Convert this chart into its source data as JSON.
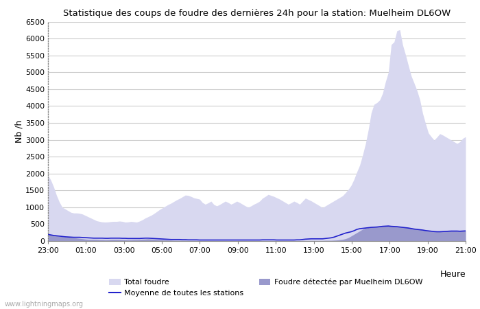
{
  "title": "Statistique des coups de foudre des dernières 24h pour la station: Muelheim DL6OW",
  "ylabel": "Nb /h",
  "xlabel": "Heure",
  "ylim": [
    0,
    6500
  ],
  "yticks": [
    0,
    500,
    1000,
    1500,
    2000,
    2500,
    3000,
    3500,
    4000,
    4500,
    5000,
    5500,
    6000,
    6500
  ],
  "xtick_labels": [
    "23:00",
    "01:00",
    "03:00",
    "05:00",
    "07:00",
    "09:00",
    "11:00",
    "13:00",
    "15:00",
    "17:00",
    "19:00",
    "21:00"
  ],
  "background_color": "#ffffff",
  "grid_color": "#cccccc",
  "total_foudre_color": "#d8d8f0",
  "detected_foudre_color": "#9999cc",
  "mean_line_color": "#2222cc",
  "watermark": "www.lightningmaps.org",
  "legend_total": "Total foudre",
  "legend_detected": "Foudre détectée par Muelheim DL6OW",
  "legend_mean": "Moyenne de toutes les stations",
  "total_foudre": [
    1950,
    1800,
    1600,
    1350,
    1150,
    1000,
    950,
    900,
    850,
    830,
    830,
    820,
    800,
    760,
    720,
    680,
    640,
    600,
    580,
    565,
    560,
    565,
    575,
    580,
    580,
    590,
    580,
    560,
    565,
    580,
    570,
    560,
    590,
    630,
    680,
    720,
    760,
    810,
    870,
    930,
    980,
    1030,
    1080,
    1120,
    1170,
    1220,
    1260,
    1310,
    1360,
    1350,
    1320,
    1280,
    1260,
    1240,
    1140,
    1090,
    1130,
    1180,
    1080,
    1040,
    1080,
    1130,
    1180,
    1140,
    1090,
    1130,
    1180,
    1140,
    1090,
    1040,
    1000,
    1040,
    1090,
    1130,
    1180,
    1270,
    1320,
    1380,
    1350,
    1320,
    1280,
    1240,
    1190,
    1140,
    1090,
    1130,
    1180,
    1140,
    1090,
    1180,
    1270,
    1230,
    1190,
    1140,
    1090,
    1040,
    990,
    1040,
    1090,
    1140,
    1190,
    1240,
    1290,
    1340,
    1430,
    1530,
    1650,
    1830,
    2050,
    2250,
    2550,
    2880,
    3300,
    3800,
    4050,
    4100,
    4180,
    4380,
    4720,
    5000,
    5820,
    5900,
    6230,
    6260,
    5810,
    5520,
    5200,
    4890,
    4680,
    4460,
    4190,
    3780,
    3480,
    3200,
    3090,
    2990,
    3080,
    3180,
    3140,
    3090,
    3040,
    2990,
    2940,
    2890,
    2940,
    3040,
    3090
  ],
  "detected_foudre": [
    195,
    185,
    170,
    155,
    140,
    130,
    120,
    115,
    108,
    100,
    88,
    78,
    68,
    58,
    50,
    48,
    48,
    48,
    43,
    43,
    38,
    40,
    48,
    48,
    48,
    48,
    43,
    43,
    38,
    38,
    43,
    43,
    48,
    53,
    58,
    63,
    58,
    53,
    48,
    43,
    38,
    33,
    28,
    23,
    18,
    18,
    18,
    18,
    18,
    13,
    13,
    13,
    13,
    8,
    8,
    8,
    8,
    8,
    8,
    8,
    8,
    8,
    8,
    8,
    8,
    8,
    8,
    8,
    8,
    8,
    8,
    8,
    8,
    8,
    8,
    8,
    8,
    8,
    8,
    8,
    8,
    8,
    8,
    8,
    8,
    8,
    8,
    8,
    8,
    13,
    13,
    13,
    13,
    13,
    13,
    13,
    13,
    18,
    18,
    18,
    23,
    28,
    38,
    48,
    68,
    98,
    148,
    198,
    248,
    298,
    348,
    378,
    398,
    418,
    428,
    438,
    438,
    448,
    448,
    448,
    438,
    438,
    438,
    428,
    418,
    408,
    398,
    378,
    358,
    348,
    338,
    328,
    308,
    298,
    288,
    283,
    278,
    283,
    288,
    293,
    298,
    298,
    298,
    293,
    293,
    298,
    303
  ],
  "mean_line": [
    195,
    180,
    165,
    155,
    145,
    135,
    125,
    120,
    115,
    110,
    110,
    110,
    105,
    100,
    95,
    90,
    85,
    85,
    85,
    85,
    80,
    80,
    85,
    85,
    85,
    85,
    80,
    80,
    75,
    75,
    75,
    75,
    75,
    80,
    85,
    85,
    80,
    75,
    70,
    65,
    60,
    55,
    50,
    45,
    45,
    45,
    45,
    40,
    40,
    35,
    35,
    35,
    35,
    30,
    30,
    30,
    30,
    30,
    30,
    30,
    30,
    30,
    30,
    30,
    30,
    30,
    30,
    30,
    30,
    30,
    30,
    30,
    30,
    30,
    30,
    35,
    35,
    35,
    35,
    35,
    30,
    30,
    30,
    30,
    30,
    30,
    30,
    35,
    35,
    45,
    55,
    60,
    65,
    65,
    65,
    65,
    65,
    75,
    85,
    95,
    115,
    145,
    175,
    205,
    235,
    255,
    275,
    305,
    345,
    365,
    375,
    385,
    395,
    405,
    410,
    415,
    425,
    435,
    440,
    445,
    435,
    430,
    425,
    415,
    405,
    395,
    385,
    370,
    355,
    345,
    335,
    325,
    310,
    300,
    290,
    280,
    275,
    275,
    280,
    285,
    290,
    295,
    295,
    295,
    290,
    295,
    300
  ]
}
